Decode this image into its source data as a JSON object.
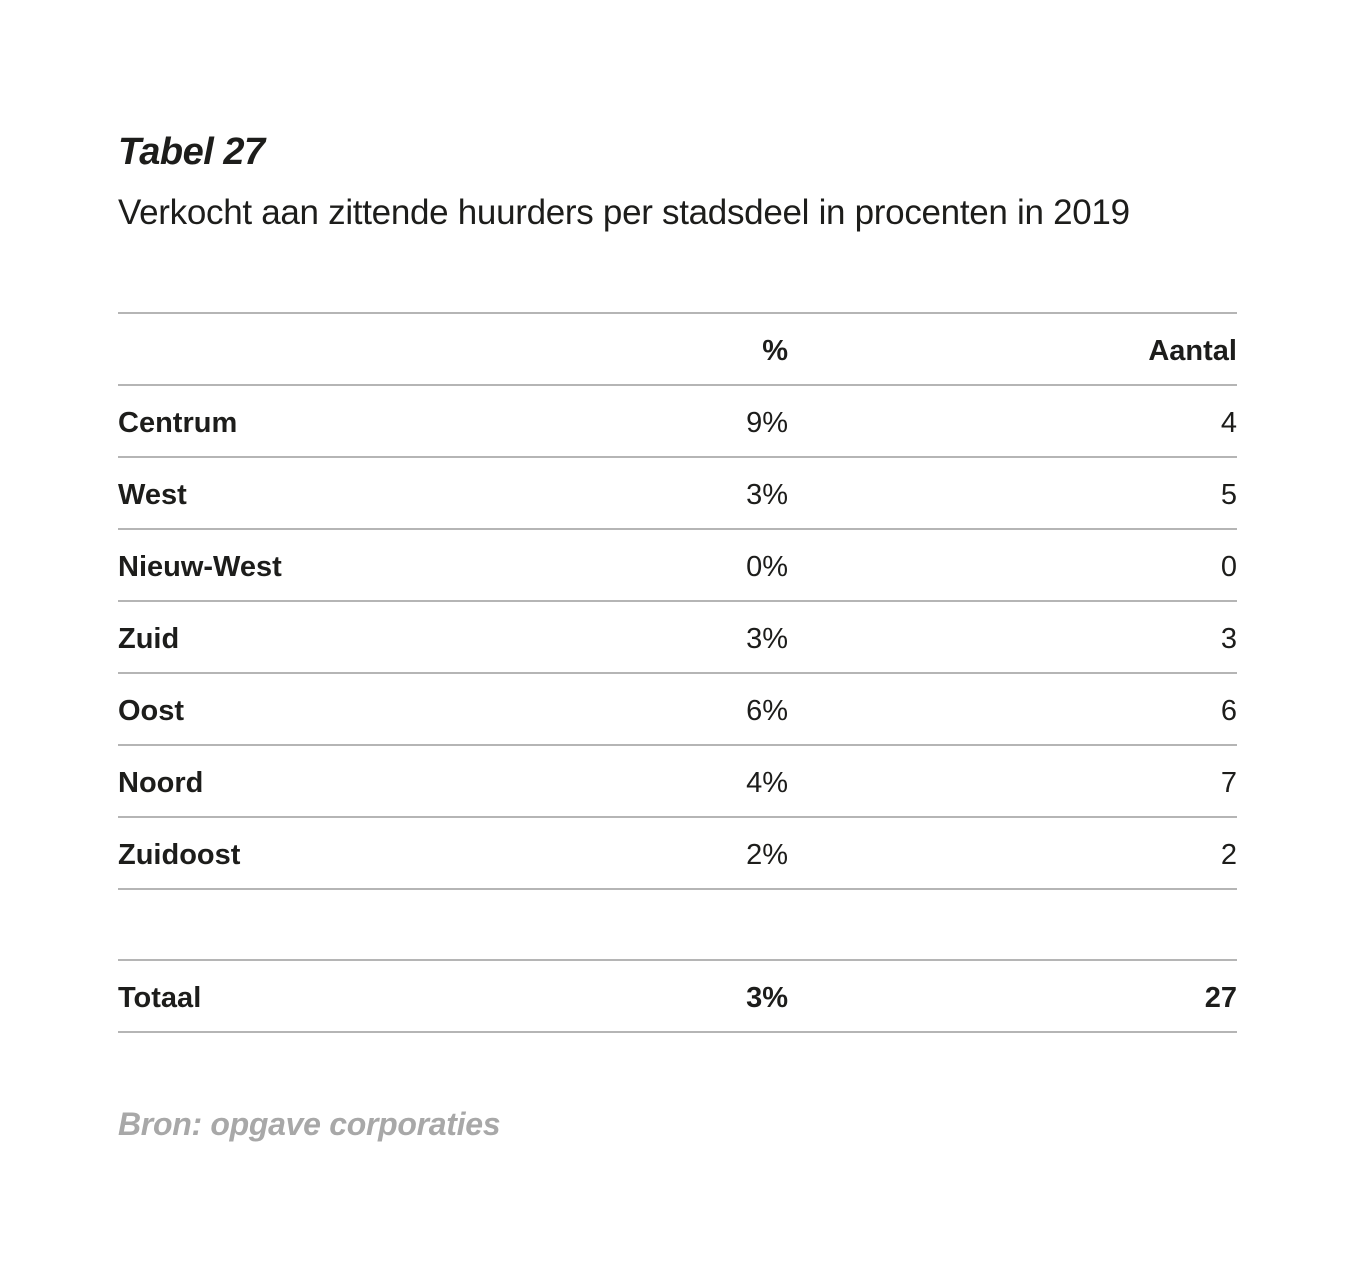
{
  "title": "Tabel 27",
  "subtitle": "Verkocht aan zittende huurders per stadsdeel in procenten in 2019",
  "table": {
    "headers": {
      "label": "",
      "pct": "%",
      "count": "Aantal"
    },
    "rows": [
      {
        "label": "Centrum",
        "pct": "9%",
        "count": "4"
      },
      {
        "label": "West",
        "pct": "3%",
        "count": "5"
      },
      {
        "label": "Nieuw-West",
        "pct": "0%",
        "count": "0"
      },
      {
        "label": "Zuid",
        "pct": "3%",
        "count": "3"
      },
      {
        "label": "Oost",
        "pct": "6%",
        "count": "6"
      },
      {
        "label": "Noord",
        "pct": "4%",
        "count": "7"
      },
      {
        "label": "Zuidoost",
        "pct": "2%",
        "count": "2"
      }
    ],
    "total": {
      "label": "Totaal",
      "pct": "3%",
      "count": "27"
    }
  },
  "source": "Bron: opgave corporaties",
  "colors": {
    "text": "#1d1d1b",
    "rule": "#b5b5b5",
    "source_text": "#a8a8a8"
  }
}
